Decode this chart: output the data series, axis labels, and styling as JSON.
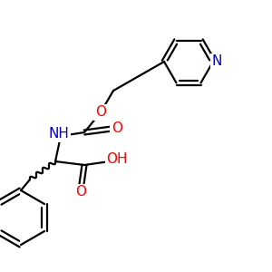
{
  "background": "#ffffff",
  "atom_colors": {
    "N": "#0000cc",
    "O": "#ff0000",
    "C": "#000000"
  },
  "bond_color": "#000000",
  "bond_width": 1.6,
  "font_size": 11
}
